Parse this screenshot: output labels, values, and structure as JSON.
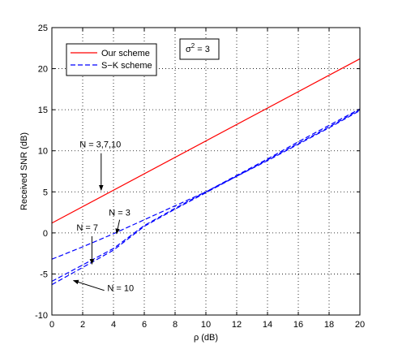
{
  "chart_data": {
    "type": "line",
    "xlabel": "ρ (dB)",
    "ylabel": "Received SNR (dB)",
    "xlim": [
      0,
      20
    ],
    "ylim": [
      -10,
      25
    ],
    "x_ticks": [
      0,
      2,
      4,
      6,
      8,
      10,
      12,
      14,
      16,
      18,
      20
    ],
    "y_ticks": [
      -10,
      -5,
      0,
      5,
      10,
      15,
      20,
      25
    ],
    "grid": true,
    "legend_position": "top-left",
    "series": [
      {
        "name": "Our scheme",
        "legend": true,
        "color": "#ff0000",
        "style": "solid",
        "x": [
          0,
          20
        ],
        "y": [
          1.2,
          21.2
        ]
      },
      {
        "name": "S−K scheme",
        "legend": true,
        "color": "#0000ff",
        "style": "dashed",
        "x": [
          0,
          2,
          4,
          6,
          8,
          10,
          12,
          14,
          16,
          18,
          20
        ],
        "y": [
          -3.2,
          -1.7,
          -0.1,
          1.6,
          3.3,
          5.0,
          6.9,
          8.8,
          10.8,
          12.8,
          14.9
        ]
      },
      {
        "name": "N = 7",
        "legend": false,
        "color": "#0000ff",
        "style": "dashed",
        "x": [
          0,
          2,
          4,
          6,
          8,
          10,
          12,
          14,
          16,
          18,
          20
        ],
        "y": [
          -5.9,
          -3.9,
          -1.9,
          0.9,
          3.0,
          5.0,
          7.0,
          9.0,
          11.1,
          13.1,
          15.1
        ]
      },
      {
        "name": "N = 10",
        "legend": false,
        "color": "#0000ff",
        "style": "dashed",
        "x": [
          0,
          2,
          4,
          6,
          8,
          10,
          12,
          14,
          16,
          18,
          20
        ],
        "y": [
          -6.3,
          -4.2,
          -2.1,
          0.8,
          2.9,
          4.9,
          6.9,
          8.9,
          10.9,
          12.9,
          15.0
        ]
      }
    ],
    "annotations": [
      {
        "text": "N = 3,7,10",
        "text_at": [
          1.8,
          10.4
        ],
        "arrow_from": [
          3.2,
          9.7
        ],
        "arrow_to": [
          3.2,
          5.2
        ]
      },
      {
        "text": "N = 3",
        "text_at": [
          3.7,
          2.1
        ],
        "arrow_from": [
          4.4,
          1.6
        ],
        "arrow_to": [
          4.2,
          -0.1
        ]
      },
      {
        "text": "N = 7",
        "text_at": [
          1.6,
          0.3
        ],
        "arrow_from": [
          2.6,
          -0.4
        ],
        "arrow_to": [
          2.6,
          -3.8
        ]
      },
      {
        "text": "N = 10",
        "text_at": [
          3.6,
          -7.1
        ],
        "arrow_from": [
          3.4,
          -7.0
        ],
        "arrow_to": [
          1.4,
          -5.8
        ]
      }
    ],
    "sigma_box": {
      "base": "σ",
      "sup": "2",
      "rest": " = 3"
    }
  }
}
